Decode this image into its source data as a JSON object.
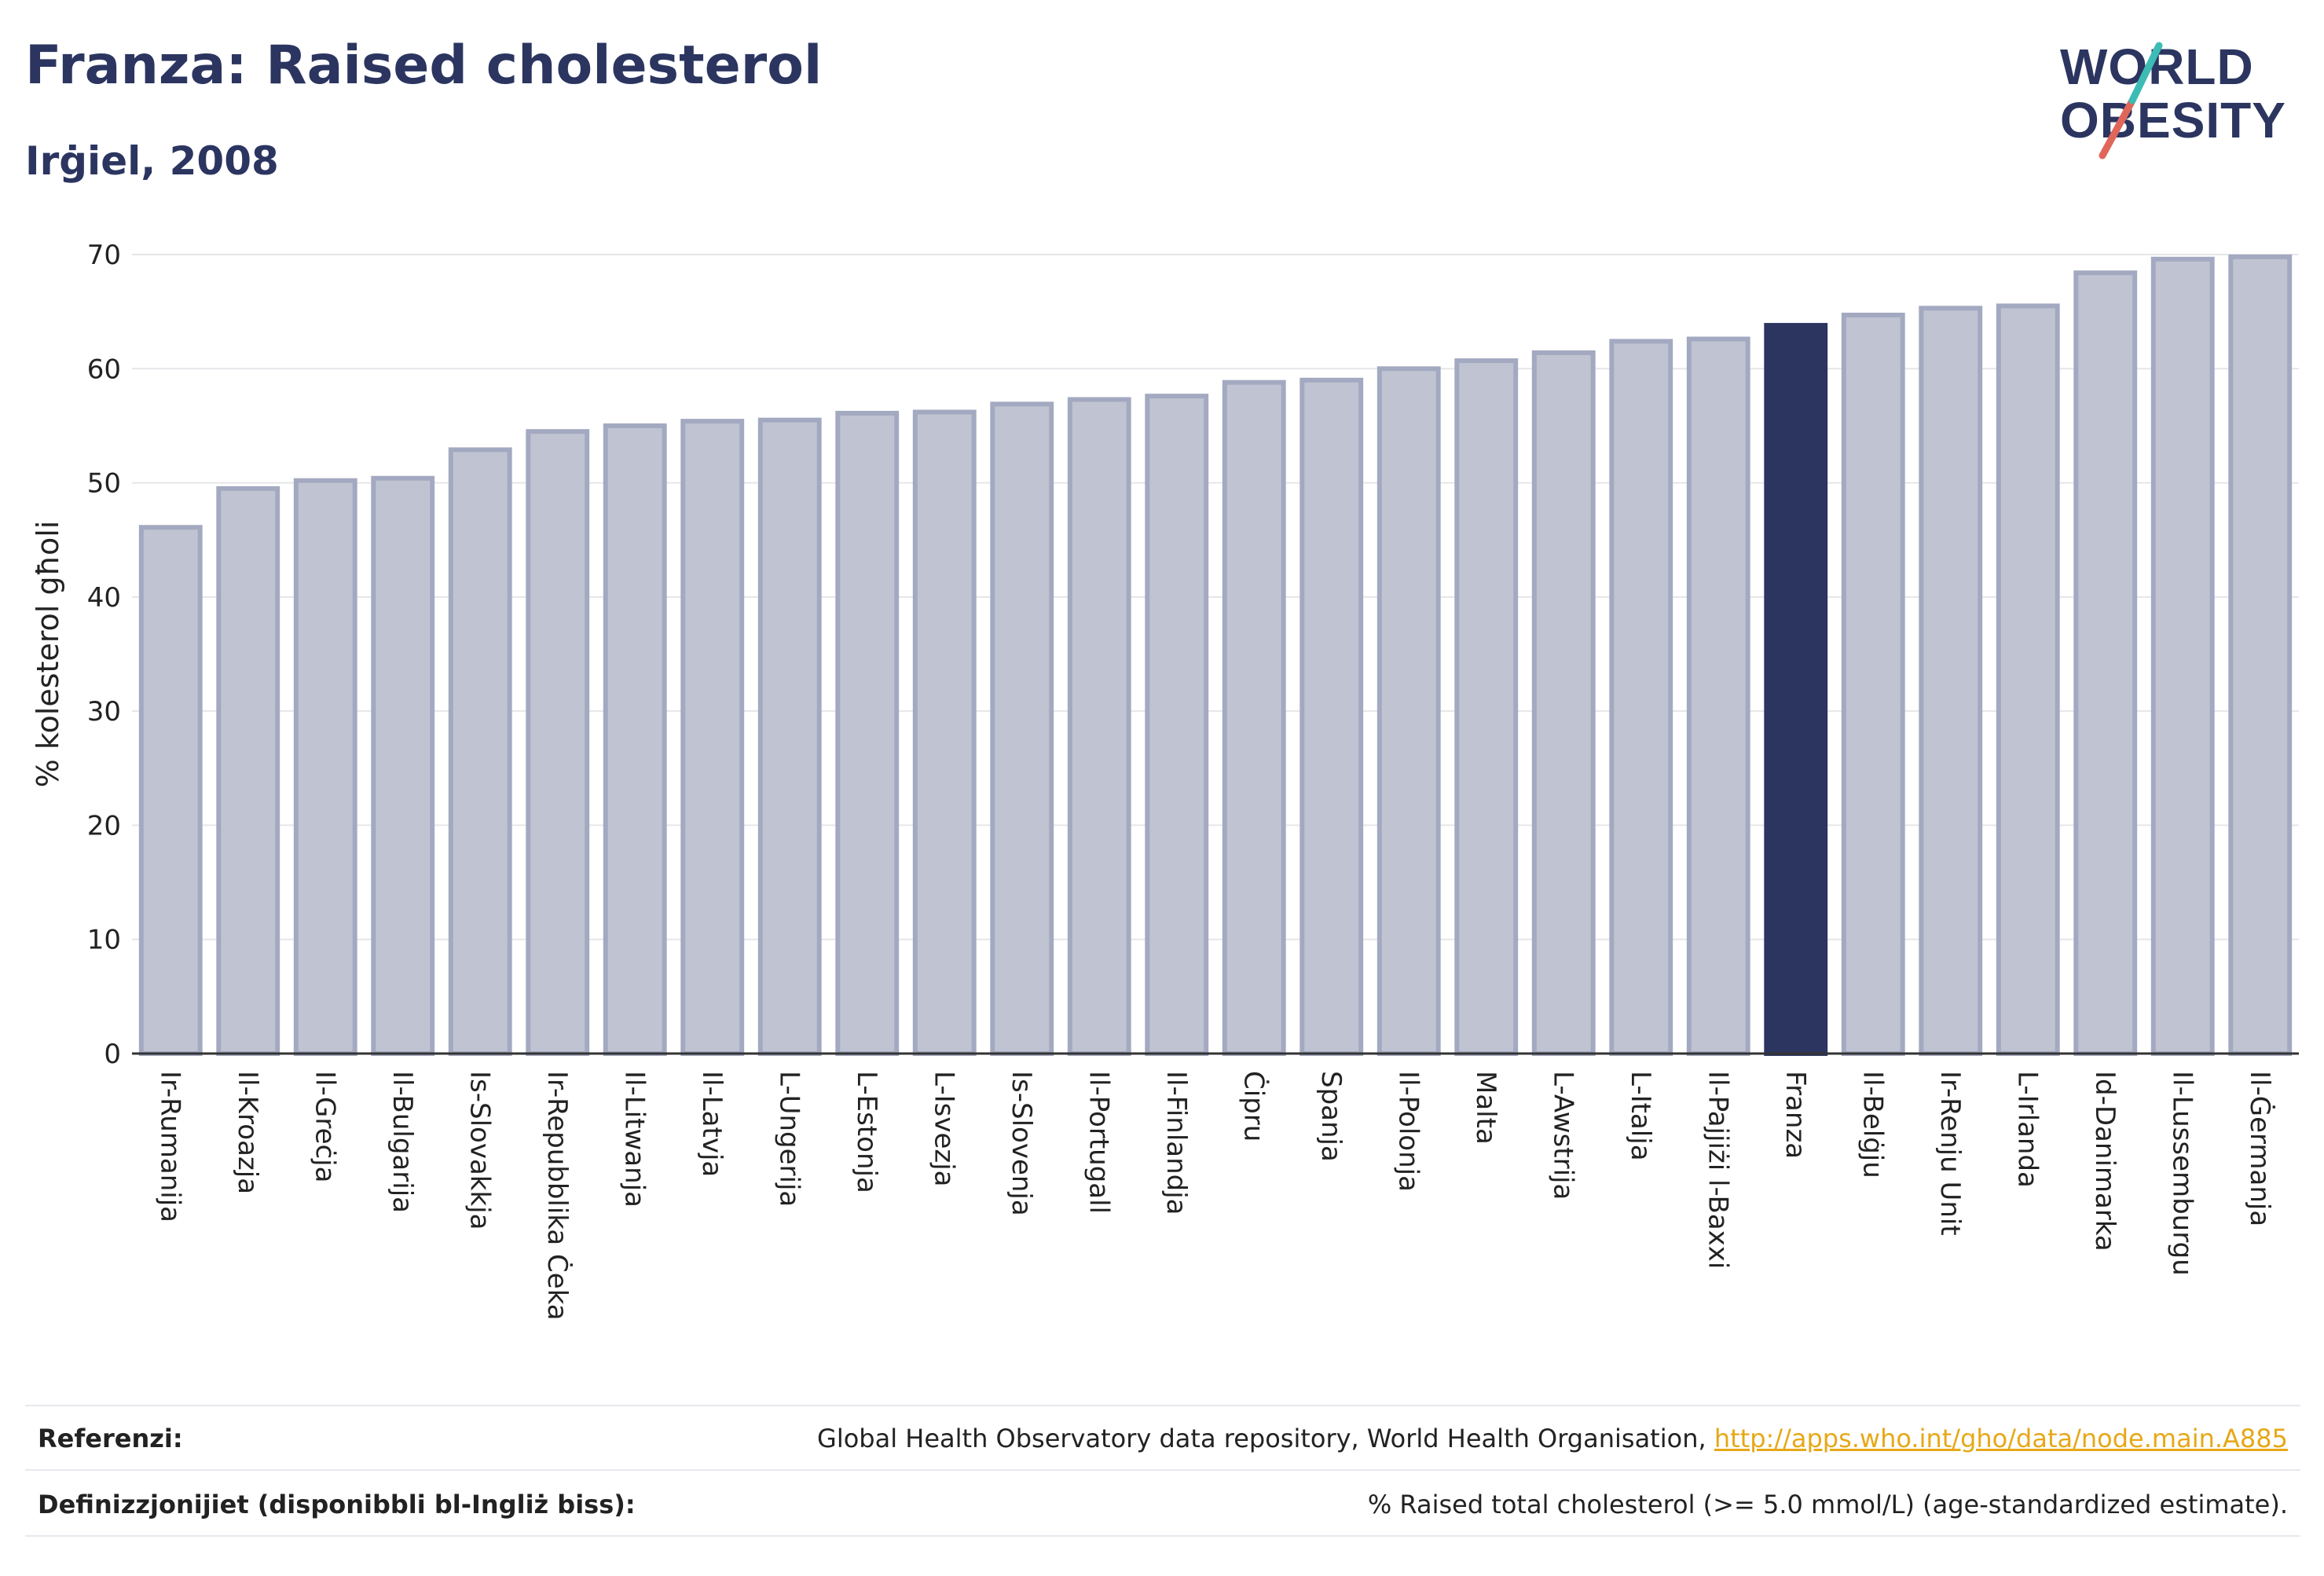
{
  "header": {
    "title": "Franza: Raised cholesterol",
    "subtitle": "Irġiel, 2008"
  },
  "logo": {
    "line1": "WORLD",
    "line2": "OBESITY",
    "slash_colors": [
      "#3cbcb4",
      "#e0665a"
    ]
  },
  "colors": {
    "highlight": "#2b3560",
    "bar": "#c0c4d2",
    "bar_border": "#a3a9c0",
    "gridline": "#e6e6ea"
  },
  "chart_data": {
    "type": "bar",
    "ylabel": "% kolesterol għoli",
    "ylim": [
      0,
      70
    ],
    "yticks": [
      0,
      10,
      20,
      30,
      40,
      50,
      60,
      70
    ],
    "grid": true,
    "highlight": "Franza",
    "categories": [
      "Ir-Rumanija",
      "Il-Kroazja",
      "Il-Greċja",
      "Il-Bulgarija",
      "Is-Slovakkja",
      "Ir-Repubblika Ċeka",
      "Il-Litwanja",
      "Il-Latvja",
      "L-Ungerija",
      "L-Estonja",
      "L-Isvezja",
      "Is-Slovenja",
      "Il-Portugall",
      "Il-Finlandja",
      "Ċipru",
      "Spanja",
      "Il-Polonja",
      "Malta",
      "L-Awstrija",
      "L-Italja",
      "Il-Pajjiżi l-Baxxi",
      "Franza",
      "Il-Belġju",
      "Ir-Renju Unit",
      "L-Irlanda",
      "Id-Danimarka",
      "Il-Lussemburgu",
      "Il-Ġermanja"
    ],
    "values": [
      46.1,
      49.5,
      50.2,
      50.4,
      52.9,
      54.5,
      55.0,
      55.4,
      55.5,
      56.1,
      56.2,
      56.9,
      57.3,
      57.6,
      58.8,
      59.0,
      60.0,
      60.7,
      61.4,
      62.4,
      62.6,
      63.8,
      64.7,
      65.3,
      65.5,
      68.4,
      69.6,
      69.8
    ]
  },
  "footer": {
    "references_label": "Referenzi:",
    "references_text": "Global Health Observatory data repository, World Health Organisation, ",
    "references_link": "http://apps.who.int/gho/data/node.main.A885",
    "definitions_label": "Definizzjonijiet (disponibbli bl-Ingliż biss):",
    "definitions_text": "% Raised total cholesterol (>= 5.0 mmol/L) (age-standardized estimate)."
  }
}
